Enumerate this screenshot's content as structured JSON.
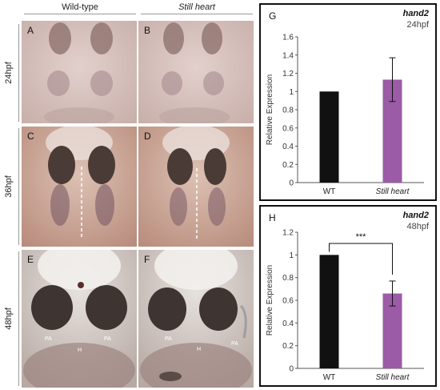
{
  "columns": [
    "Wild-type",
    "Still heart"
  ],
  "rows": [
    "24hpf",
    "36hpf",
    "48hpf"
  ],
  "panels": {
    "A": "A",
    "B": "B",
    "C": "C",
    "D": "D",
    "E": "E",
    "F": "F"
  },
  "annotations": {
    "pa": "PA",
    "h": "H"
  },
  "colors": {
    "wt_bar": "#111111",
    "mutant_bar": "#9b5ba6",
    "embryo_bg_24": "#d9c4c0",
    "embryo_bg_36": "#cfae9e",
    "embryo_bg_48": "#c9bcb6"
  },
  "chart_data": [
    {
      "panel_label": "G",
      "type": "bar",
      "title": "hand2",
      "subtitle": "24hpf",
      "ylabel": "Relative Expression",
      "categories": [
        "WT",
        "Still heart"
      ],
      "values": [
        1.0,
        1.13
      ],
      "errors": [
        0.0,
        0.24
      ],
      "ylim": [
        0,
        1.6
      ],
      "yticks": [
        "0",
        "0.2",
        "0.4",
        "0.6",
        "0.8",
        "1",
        "1.2",
        "1.4",
        "1.6"
      ],
      "significance": ""
    },
    {
      "panel_label": "H",
      "type": "bar",
      "title": "hand2",
      "subtitle": "48hpf",
      "ylabel": "Relative Expression",
      "categories": [
        "WT",
        "Still heart"
      ],
      "values": [
        1.0,
        0.66
      ],
      "errors": [
        0.0,
        0.11
      ],
      "ylim": [
        0,
        1.2
      ],
      "yticks": [
        "0",
        "0.2",
        "0.4",
        "0.6",
        "0.8",
        "1",
        "1.2"
      ],
      "significance": "***"
    }
  ]
}
